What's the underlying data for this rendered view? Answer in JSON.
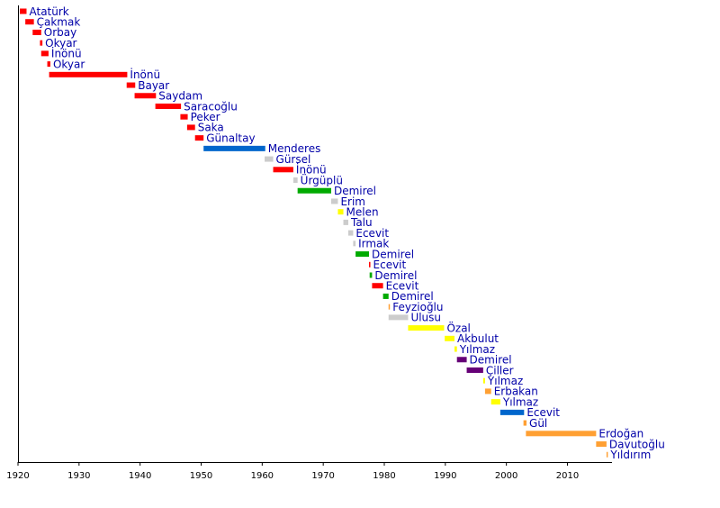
{
  "chart_data": {
    "type": "bar",
    "orientation": "horizontal-timeline",
    "title": "",
    "xlabel": "",
    "ylabel": "",
    "xlim": [
      1920,
      2017.3
    ],
    "x_ticks": [
      1920,
      1930,
      1940,
      1950,
      1960,
      1970,
      1980,
      1990,
      2000,
      2010
    ],
    "grid": false,
    "colors": {
      "red": "#ff0000",
      "blue": "#0066cc",
      "grey": "#cccccc",
      "green": "#00aa00",
      "yellow": "#ffff00",
      "purple": "#660077",
      "orange": "#ffa033",
      "label": "#0000a8"
    },
    "series": [
      {
        "name": "Atatürk",
        "start": 1920.3,
        "end": 1921.4,
        "color": "red"
      },
      {
        "name": "Çakmak",
        "start": 1921.2,
        "end": 1922.6,
        "color": "red"
      },
      {
        "name": "Orbay",
        "start": 1922.4,
        "end": 1923.8,
        "color": "red"
      },
      {
        "name": "Okyar",
        "start": 1923.6,
        "end": 1924.0,
        "color": "red"
      },
      {
        "name": "İnönü",
        "start": 1923.8,
        "end": 1925.0,
        "color": "red"
      },
      {
        "name": "Okyar",
        "start": 1924.8,
        "end": 1925.3,
        "color": "red"
      },
      {
        "name": "İnönü",
        "start": 1925.1,
        "end": 1937.9,
        "color": "red"
      },
      {
        "name": "Bayar",
        "start": 1937.8,
        "end": 1939.2,
        "color": "red"
      },
      {
        "name": "Saydam",
        "start": 1939.1,
        "end": 1942.6,
        "color": "red"
      },
      {
        "name": "Saracoğlu",
        "start": 1942.5,
        "end": 1946.7,
        "color": "red"
      },
      {
        "name": "Peker",
        "start": 1946.6,
        "end": 1947.8,
        "color": "red"
      },
      {
        "name": "Saka",
        "start": 1947.7,
        "end": 1949.0,
        "color": "red"
      },
      {
        "name": "Günaltay",
        "start": 1949.0,
        "end": 1950.4,
        "color": "red"
      },
      {
        "name": "Menderes",
        "start": 1950.4,
        "end": 1960.5,
        "color": "blue"
      },
      {
        "name": "Gürsel",
        "start": 1960.4,
        "end": 1961.8,
        "color": "grey"
      },
      {
        "name": "İnönü",
        "start": 1961.8,
        "end": 1965.1,
        "color": "red"
      },
      {
        "name": "Ürgüplü",
        "start": 1965.1,
        "end": 1965.8,
        "color": "grey"
      },
      {
        "name": "Demirel",
        "start": 1965.8,
        "end": 1971.3,
        "color": "green"
      },
      {
        "name": "Erim",
        "start": 1971.3,
        "end": 1972.4,
        "color": "grey"
      },
      {
        "name": "Melen",
        "start": 1972.4,
        "end": 1973.3,
        "color": "yellow"
      },
      {
        "name": "Talu",
        "start": 1973.3,
        "end": 1974.1,
        "color": "grey"
      },
      {
        "name": "Ecevit",
        "start": 1974.1,
        "end": 1974.9,
        "color": "grey"
      },
      {
        "name": "Irmak",
        "start": 1974.9,
        "end": 1975.3,
        "color": "grey"
      },
      {
        "name": "Demirel",
        "start": 1975.3,
        "end": 1977.5,
        "color": "green"
      },
      {
        "name": "Ecevit",
        "start": 1977.5,
        "end": 1977.6,
        "color": "red"
      },
      {
        "name": "Demirel",
        "start": 1977.6,
        "end": 1978.0,
        "color": "green"
      },
      {
        "name": "Ecevit",
        "start": 1978.0,
        "end": 1979.8,
        "color": "red"
      },
      {
        "name": "Demirel",
        "start": 1979.8,
        "end": 1980.7,
        "color": "green"
      },
      {
        "name": "Feyzioğlu",
        "start": 1980.7,
        "end": 1980.8,
        "color": "orange"
      },
      {
        "name": "Ulusu",
        "start": 1980.7,
        "end": 1983.9,
        "color": "grey"
      },
      {
        "name": "Özal",
        "start": 1983.9,
        "end": 1989.8,
        "color": "yellow"
      },
      {
        "name": "Akbulut",
        "start": 1989.9,
        "end": 1991.5,
        "color": "yellow"
      },
      {
        "name": "Yılmaz",
        "start": 1991.5,
        "end": 1991.9,
        "color": "yellow"
      },
      {
        "name": "Demirel",
        "start": 1991.9,
        "end": 1993.5,
        "color": "purple"
      },
      {
        "name": "Çiller",
        "start": 1993.5,
        "end": 1996.2,
        "color": "purple"
      },
      {
        "name": "Yılmaz",
        "start": 1996.2,
        "end": 1996.5,
        "color": "yellow"
      },
      {
        "name": "Erbakan",
        "start": 1996.5,
        "end": 1997.5,
        "color": "orange"
      },
      {
        "name": "Yılmaz",
        "start": 1997.5,
        "end": 1999.0,
        "color": "yellow"
      },
      {
        "name": "Ecevit",
        "start": 1999.0,
        "end": 2002.9,
        "color": "blue"
      },
      {
        "name": "Gül",
        "start": 2002.8,
        "end": 2003.3,
        "color": "orange"
      },
      {
        "name": "Erdoğan",
        "start": 2003.2,
        "end": 2014.7,
        "color": "orange"
      },
      {
        "name": "Davutoğlu",
        "start": 2014.7,
        "end": 2016.4,
        "color": "orange"
      },
      {
        "name": "Yıldırım",
        "start": 2016.4,
        "end": 2016.6,
        "color": "orange"
      }
    ]
  }
}
